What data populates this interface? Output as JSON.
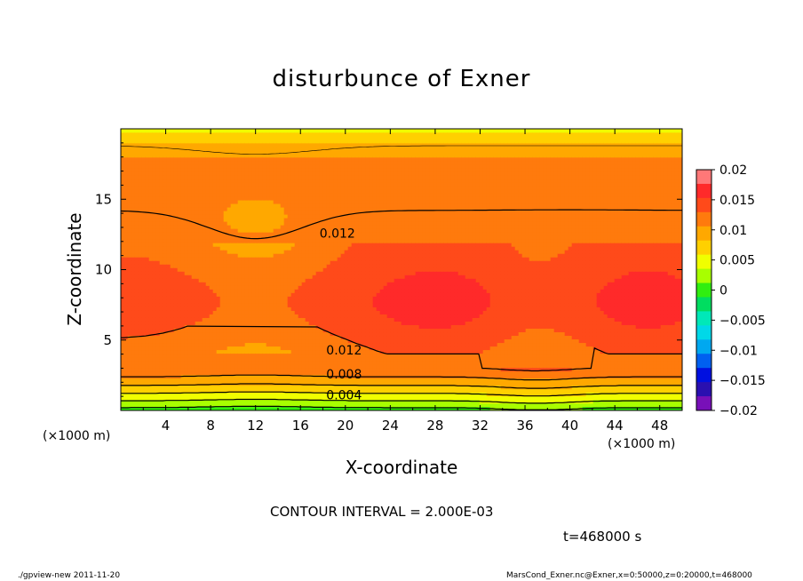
{
  "chart_data": {
    "type": "contour",
    "title": "disturbunce of Exner",
    "xlabel": "X-coordinate",
    "ylabel": "Z-coordinate",
    "x_unit": "(×1000 m)",
    "xlim": [
      0,
      50
    ],
    "ylim": [
      0,
      20
    ],
    "x_ticks": [
      4,
      8,
      12,
      16,
      20,
      24,
      28,
      32,
      36,
      40,
      44,
      48
    ],
    "y_ticks": [
      5,
      10,
      15
    ],
    "contour_interval_label": "CONTOUR INTERVAL = 2.000E-03",
    "time_label": "t=468000 s",
    "contour_labels": [
      {
        "text": "0.012",
        "x": 17.7,
        "z": 12.6
      },
      {
        "text": "0.012",
        "x": 18.3,
        "z": 4.3
      },
      {
        "text": "0.008",
        "x": 18.3,
        "z": 2.6
      },
      {
        "text": "0.004",
        "x": 18.3,
        "z": 1.1
      }
    ],
    "colorbar": {
      "labels": [
        "0.02",
        "0.015",
        "0.01",
        "0.005",
        "0",
        "−0.005",
        "−0.01",
        "−0.015",
        "−0.02"
      ],
      "values": [
        0.02,
        0.015,
        0.01,
        0.005,
        0,
        -0.005,
        -0.01,
        -0.015,
        -0.02
      ],
      "colors": [
        "#ff7878",
        "#ff2a2a",
        "#ff4a1a",
        "#ff7a0d",
        "#ffa800",
        "#ffd000",
        "#f0ff00",
        "#a8ff00",
        "#30ee10",
        "#00dd60",
        "#00e8b8",
        "#00d8e8",
        "#00a8f0",
        "#0060f0",
        "#0010e0",
        "#2a10b0",
        "#7810b8"
      ]
    },
    "bands": {
      "levels": [
        0.0,
        0.002,
        0.004,
        0.006,
        0.008,
        0.01,
        0.012,
        0.014,
        0.016
      ],
      "colors": [
        "#30ee10",
        "#a8ff00",
        "#f0ff00",
        "#ffd000",
        "#ffa800",
        "#ff7a0d",
        "#ff4a1a",
        "#ff2a2a",
        "#ff7878"
      ]
    }
  },
  "footer": {
    "left": "./gpview-new   2011-11-20",
    "right": "MarsCond_Exner.nc@Exner,x=0:50000,z=0:20000,t=468000"
  }
}
